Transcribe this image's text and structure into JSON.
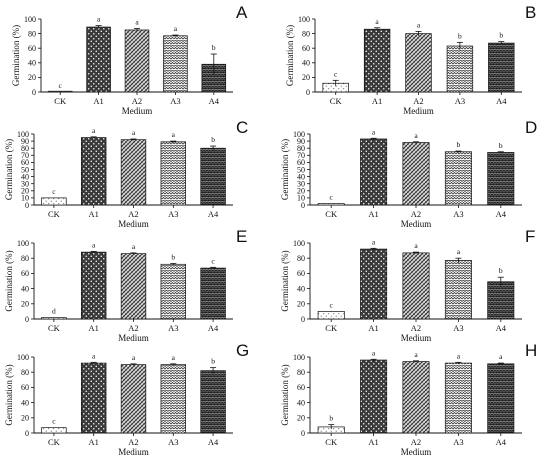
{
  "figure": {
    "colors": {
      "axis": "#111111",
      "bar_edge": "#111111",
      "background": "#ffffff"
    }
  },
  "chart_data": [
    {
      "panel": "A",
      "type": "bar",
      "categories": [
        "CK",
        "A1",
        "A2",
        "A3",
        "A4"
      ],
      "values": [
        0,
        89,
        85,
        77,
        38
      ],
      "errors": [
        0,
        2,
        2,
        1,
        14
      ],
      "significance": [
        "c",
        "a",
        "a",
        "a",
        "b"
      ],
      "xlabel": "Medium",
      "ylabel": "Germination (%)",
      "ylim": [
        0,
        100
      ],
      "yticks": [
        0,
        20,
        40,
        60,
        80,
        100
      ],
      "legend": false,
      "grid": false
    },
    {
      "panel": "B",
      "type": "bar",
      "categories": [
        "CK",
        "A1",
        "A2",
        "A3",
        "A4"
      ],
      "values": [
        12,
        86,
        80,
        63,
        67
      ],
      "errors": [
        4,
        2,
        3,
        5,
        2
      ],
      "significance": [
        "c",
        "a",
        "a",
        "b",
        "b"
      ],
      "xlabel": "Medium",
      "ylabel": "Germination (%)",
      "ylim": [
        0,
        100
      ],
      "yticks": [
        0,
        20,
        40,
        60,
        80,
        100
      ],
      "legend": false,
      "grid": false
    },
    {
      "panel": "C",
      "type": "bar",
      "categories": [
        "CK",
        "A1",
        "A2",
        "A3",
        "A4"
      ],
      "values": [
        10,
        95,
        92,
        89,
        80
      ],
      "errors": [
        0,
        1,
        1,
        1,
        3
      ],
      "significance": [
        "c",
        "a",
        "a",
        "a",
        "b"
      ],
      "xlabel": "Medium",
      "ylabel": "Germination (%)",
      "ylim": [
        0,
        100
      ],
      "yticks": [
        0,
        10,
        20,
        30,
        40,
        50,
        60,
        70,
        80,
        90,
        100
      ],
      "legend": false,
      "grid": false
    },
    {
      "panel": "D",
      "type": "bar",
      "categories": [
        "CK",
        "A1",
        "A2",
        "A3",
        "A4"
      ],
      "values": [
        2,
        93,
        88,
        75,
        74
      ],
      "errors": [
        0,
        1,
        1,
        1,
        1
      ],
      "significance": [
        "c",
        "a",
        "a",
        "b",
        "b"
      ],
      "xlabel": "Medium",
      "ylabel": "Germination (%)",
      "ylim": [
        0,
        100
      ],
      "yticks": [
        0,
        10,
        20,
        30,
        40,
        50,
        60,
        70,
        80,
        90,
        100
      ],
      "legend": false,
      "grid": false
    },
    {
      "panel": "E",
      "type": "bar",
      "categories": [
        "CK",
        "A1",
        "A2",
        "A3",
        "A4"
      ],
      "values": [
        2,
        88,
        86,
        72,
        67
      ],
      "errors": [
        0,
        1,
        1,
        1,
        1
      ],
      "significance": [
        "d",
        "a",
        "a",
        "b",
        "c"
      ],
      "xlabel": "Medium",
      "ylabel": "Germination (%)",
      "ylim": [
        0,
        100
      ],
      "yticks": [
        0,
        20,
        40,
        60,
        80,
        100
      ],
      "legend": false,
      "grid": false
    },
    {
      "panel": "F",
      "type": "bar",
      "categories": [
        "CK",
        "A1",
        "A2",
        "A3",
        "A4"
      ],
      "values": [
        10,
        92,
        87,
        77,
        49
      ],
      "errors": [
        0,
        1,
        1,
        3,
        6
      ],
      "significance": [
        "c",
        "a",
        "a",
        "a",
        "b"
      ],
      "xlabel": "Medium",
      "ylabel": "Germination (%)",
      "ylim": [
        0,
        100
      ],
      "yticks": [
        0,
        20,
        40,
        60,
        80,
        100
      ],
      "legend": false,
      "grid": false
    },
    {
      "panel": "G",
      "type": "bar",
      "categories": [
        "CK",
        "A1",
        "A2",
        "A3",
        "A4"
      ],
      "values": [
        7,
        92,
        90,
        90,
        82
      ],
      "errors": [
        0,
        1,
        1,
        1,
        4
      ],
      "significance": [
        "c",
        "a",
        "a",
        "a",
        "b"
      ],
      "xlabel": "Medium",
      "ylabel": "Germination (%)",
      "ylim": [
        0,
        100
      ],
      "yticks": [
        0,
        20,
        40,
        60,
        80,
        100
      ],
      "legend": false,
      "grid": false
    },
    {
      "panel": "H",
      "type": "bar",
      "categories": [
        "CK",
        "A1",
        "A2",
        "A3",
        "A4"
      ],
      "values": [
        8,
        96,
        94,
        92,
        91
      ],
      "errors": [
        3,
        1,
        1,
        1,
        1
      ],
      "significance": [
        "b",
        "a",
        "a",
        "a",
        "a"
      ],
      "xlabel": "Medium",
      "ylabel": "Germination (%)",
      "ylim": [
        0,
        100
      ],
      "yticks": [
        0,
        20,
        40,
        60,
        80,
        100
      ],
      "legend": false,
      "grid": false
    }
  ]
}
